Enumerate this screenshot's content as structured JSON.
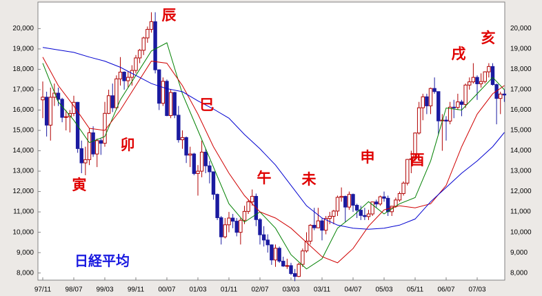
{
  "chart_data": {
    "type": "candlestick",
    "title": "日経平均",
    "categories": [
      "97/11",
      null,
      null,
      null,
      null,
      null,
      null,
      null,
      "98/07",
      null,
      null,
      null,
      null,
      null,
      null,
      null,
      "99/03",
      null,
      null,
      null,
      null,
      null,
      null,
      null,
      "99/11",
      null,
      null,
      null,
      null,
      null,
      null,
      null,
      "00/07",
      null,
      null,
      null,
      null,
      null,
      null,
      null,
      "01/03",
      null,
      null,
      null,
      null,
      null,
      null,
      null,
      "01/11",
      null,
      null,
      null,
      null,
      null,
      null,
      null,
      "02/07",
      null,
      null,
      null,
      null,
      null,
      null,
      null,
      "03/03",
      null,
      null,
      null,
      null,
      null,
      null,
      null,
      "03/11",
      null,
      null,
      null,
      null,
      null,
      null,
      null,
      "04/07",
      null,
      null,
      null,
      null,
      null,
      null,
      null,
      "05/03",
      null,
      null,
      null,
      null,
      null,
      null,
      null,
      "05/11",
      null,
      null,
      null,
      null,
      null,
      null,
      null,
      "06/07",
      null,
      null,
      null,
      null,
      null,
      null,
      null,
      "07/03",
      null,
      null,
      null,
      null,
      null,
      null,
      null
    ],
    "open": [
      16500,
      16631,
      15259,
      16628,
      16831,
      16527,
      15641,
      15671,
      15830,
      16379,
      14108,
      13406,
      13565,
      14883,
      13842,
      14499,
      14368,
      15837,
      16702,
      16112,
      17530,
      17862,
      17437,
      17606,
      17943,
      18558,
      18934,
      19540,
      19960,
      20337,
      17974,
      16332,
      17411,
      15727,
      16861,
      15747,
      14540,
      14649,
      13786,
      13844,
      12884,
      12999,
      13934,
      13262,
      12969,
      11861,
      10714,
      9775,
      10367,
      10697,
      10543,
      9997,
      10588,
      11025,
      11493,
      11764,
      10622,
      9877,
      9619,
      9383,
      8640,
      9216,
      8579,
      8340,
      8363,
      7973,
      7831,
      8425,
      9083,
      9563,
      10344,
      10219,
      10560,
      10101,
      10677,
      10784,
      11041,
      11715,
      11762,
      11236,
      11859,
      11326,
      11082,
      10824,
      10771,
      10899,
      11489,
      11388,
      11741,
      11669,
      11009,
      11277,
      11584,
      11900,
      12414,
      13574,
      13607,
      14872,
      16111,
      16650,
      16205,
      17060,
      16906,
      15467,
      15505,
      15457,
      16141,
      16128,
      16399,
      16274,
      17226,
      17383,
      17604,
      17288,
      17400,
      17876,
      18138,
      17249,
      16569,
      16786
    ],
    "high": [
      17400,
      16900,
      17100,
      17300,
      17100,
      16600,
      16000,
      16000,
      16700,
      16400,
      14500,
      14200,
      15100,
      15200,
      14600,
      14600,
      16400,
      17000,
      17300,
      17700,
      18600,
      17900,
      17900,
      18200,
      18700,
      19000,
      19600,
      20100,
      20800,
      20800,
      18000,
      17600,
      17500,
      17000,
      16900,
      16200,
      15000,
      14700,
      14200,
      13900,
      13300,
      14500,
      14100,
      13500,
      12900,
      11900,
      10800,
      10700,
      11000,
      10900,
      10700,
      10700,
      11300,
      11600,
      12100,
      11900,
      10700,
      10300,
      9900,
      9400,
      9400,
      9300,
      8800,
      8700,
      8500,
      8200,
      8500,
      9200,
      10000,
      10400,
      11200,
      11200,
      10700,
      10800,
      11000,
      11100,
      11800,
      12200,
      11800,
      12000,
      11900,
      11400,
      11300,
      11200,
      11100,
      11500,
      11600,
      11800,
      12000,
      11800,
      11300,
      11700,
      12000,
      12500,
      13600,
      14000,
      14900,
      16400,
      16800,
      16800,
      17100,
      17600,
      16900,
      15800,
      15700,
      16400,
      16500,
      16800,
      16500,
      17300,
      17600,
      18300,
      17700,
      17800,
      17900,
      18300,
      18300,
      17300,
      16900,
      17000
    ],
    "low": [
      15600,
      14700,
      14500,
      16200,
      16200,
      15400,
      15000,
      14900,
      15700,
      13900,
      12900,
      12800,
      13300,
      13700,
      13200,
      13800,
      14200,
      15800,
      15900,
      16000,
      17200,
      17000,
      17100,
      17200,
      17800,
      18300,
      18700,
      19300,
      19800,
      17800,
      16000,
      16200,
      15700,
      15600,
      15600,
      14400,
      14100,
      13400,
      13200,
      12800,
      11800,
      12700,
      12900,
      12400,
      11600,
      10600,
      9400,
      9700,
      10000,
      10200,
      9800,
      9400,
      10400,
      10900,
      11300,
      10300,
      9400,
      9300,
      9000,
      8400,
      8300,
      8500,
      8300,
      8200,
      7900,
      7600,
      7800,
      8300,
      9000,
      9400,
      10100,
      10200,
      9600,
      9900,
      10400,
      10400,
      10800,
      11500,
      10500,
      11100,
      11000,
      10700,
      10600,
      10600,
      10600,
      10800,
      11200,
      11300,
      11500,
      10800,
      10800,
      11200,
      11500,
      11800,
      12300,
      12900,
      13500,
      14800,
      15500,
      15800,
      15800,
      16800,
      14800,
      14000,
      14500,
      15300,
      15600,
      16000,
      15700,
      16100,
      17000,
      17300,
      16500,
      17100,
      17300,
      17600,
      17200,
      15300,
      15800,
      16400
    ],
    "close": [
      16631,
      15259,
      16628,
      16831,
      16527,
      15641,
      15671,
      15830,
      16379,
      14108,
      13406,
      13565,
      14883,
      13842,
      14499,
      14368,
      15837,
      16702,
      16112,
      17530,
      17862,
      17437,
      17606,
      17943,
      18558,
      18934,
      19540,
      19960,
      20337,
      17974,
      16332,
      17411,
      15727,
      16861,
      15747,
      14540,
      14649,
      13786,
      13844,
      12884,
      12999,
      13934,
      13262,
      12969,
      11861,
      10714,
      9775,
      10367,
      10697,
      10543,
      9997,
      10588,
      11025,
      11493,
      11764,
      10622,
      9877,
      9619,
      9383,
      8640,
      9216,
      8579,
      8340,
      8363,
      7973,
      7831,
      8425,
      9083,
      9563,
      10344,
      10219,
      10560,
      10101,
      10677,
      10784,
      11041,
      11715,
      11762,
      11236,
      11859,
      11326,
      11082,
      10824,
      10771,
      10899,
      11489,
      11388,
      11741,
      11669,
      11009,
      11277,
      11584,
      11900,
      12414,
      13574,
      13607,
      14872,
      16111,
      16650,
      16205,
      17060,
      16906,
      15467,
      15505,
      15457,
      16141,
      16128,
      16399,
      16274,
      17226,
      17383,
      17604,
      17288,
      17400,
      17876,
      18138,
      17249,
      16569,
      16786,
      16738
    ],
    "up_color": "#b00000",
    "down_color": "#1a1aa0",
    "lines": [
      {
        "color": "#008000",
        "x": [
          0,
          4,
          8,
          12,
          16,
          20,
          24,
          28,
          32,
          36,
          40,
          44,
          48,
          52,
          56,
          60,
          64,
          68,
          72,
          76,
          80,
          84,
          88,
          92,
          96,
          100,
          104,
          108,
          112,
          116,
          119
        ],
        "values": [
          18300,
          16400,
          15500,
          14400,
          14700,
          16500,
          17700,
          18900,
          19300,
          16800,
          15000,
          13200,
          11400,
          10500,
          11000,
          10200,
          8900,
          8200,
          8700,
          10200,
          10800,
          11500,
          10900,
          11400,
          11700,
          13500,
          16100,
          16000,
          16800,
          17600,
          17000
        ]
      },
      {
        "color": "#d00000",
        "x": [
          0,
          4,
          8,
          12,
          16,
          20,
          24,
          28,
          32,
          36,
          40,
          44,
          48,
          52,
          56,
          60,
          64,
          68,
          72,
          76,
          80,
          84,
          88,
          92,
          96,
          100,
          104,
          108,
          112,
          116,
          119
        ],
        "values": [
          18600,
          17200,
          16200,
          15100,
          15000,
          16000,
          17200,
          18400,
          18300,
          17200,
          15800,
          14200,
          12900,
          11800,
          11000,
          10700,
          10200,
          9500,
          8800,
          8500,
          9200,
          10300,
          11100,
          11300,
          11200,
          11400,
          12300,
          14200,
          15800,
          16800,
          17200
        ]
      },
      {
        "color": "#0000d0",
        "x": [
          0,
          4,
          8,
          12,
          16,
          20,
          24,
          28,
          32,
          36,
          40,
          44,
          48,
          52,
          56,
          60,
          64,
          68,
          72,
          76,
          80,
          84,
          88,
          92,
          96,
          100,
          104,
          108,
          112,
          116,
          119
        ],
        "values": [
          19070,
          18950,
          18830,
          18600,
          18400,
          18100,
          17700,
          17300,
          17050,
          16900,
          16450,
          16050,
          15600,
          14800,
          14100,
          13300,
          12300,
          11300,
          10700,
          10350,
          10200,
          10150,
          10200,
          10350,
          10650,
          11500,
          12200,
          12900,
          13500,
          14200,
          14900
        ]
      }
    ],
    "ylim": [
      7650,
      21300
    ],
    "yticks": [
      {
        "value": 8000,
        "label": "8,000"
      },
      {
        "value": 9000,
        "label": "9,000"
      },
      {
        "value": 10000,
        "label": "10,000"
      },
      {
        "value": 11000,
        "label": "11,000"
      },
      {
        "value": 12000,
        "label": "12,000"
      },
      {
        "value": 13000,
        "label": "13,000"
      },
      {
        "value": 14000,
        "label": "14,000"
      },
      {
        "value": 15000,
        "label": "15,000"
      },
      {
        "value": 16000,
        "label": "16,000"
      },
      {
        "value": 17000,
        "label": "17,000"
      },
      {
        "value": 18000,
        "label": "18,000"
      },
      {
        "value": 19000,
        "label": "19,000"
      },
      {
        "value": 20000,
        "label": "20,000"
      }
    ],
    "grid": false,
    "annotations": [
      "寅",
      "卯",
      "辰",
      "巳",
      "午",
      "未",
      "申",
      "酉",
      "戌",
      "亥"
    ]
  }
}
